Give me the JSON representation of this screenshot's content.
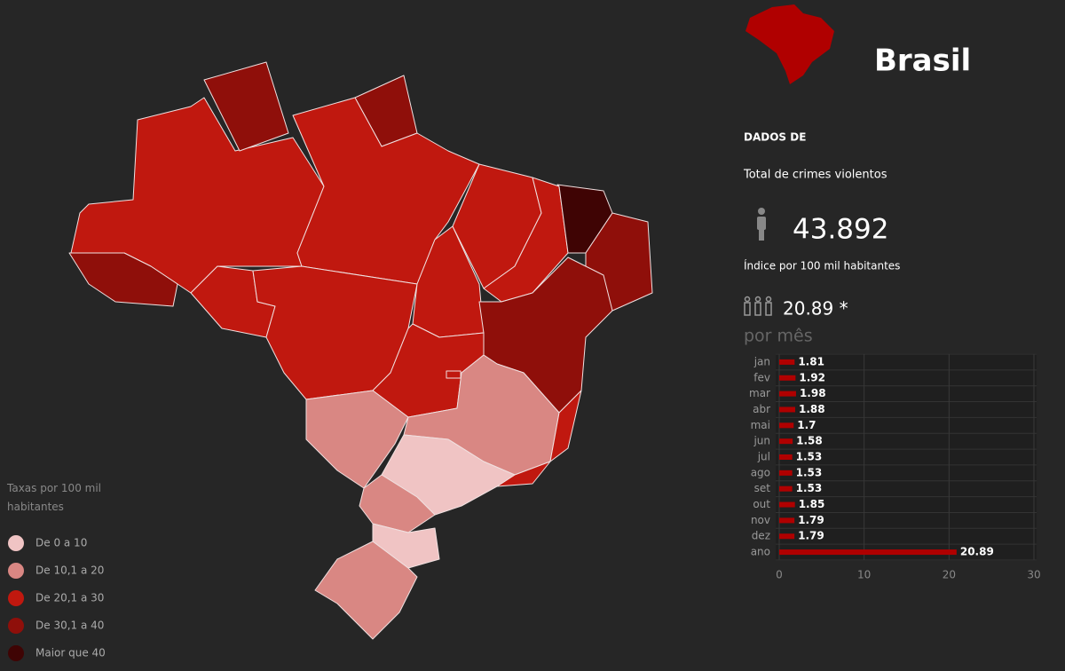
{
  "header": {
    "title": "Brasil"
  },
  "panel": {
    "section": "DADOS DE",
    "total_label": "Total de crimes violentos",
    "total_value": "43.892",
    "index_label": "Índice por 100 mil habitantes",
    "index_value": "20.89 *",
    "subtitle": "por mês"
  },
  "legend": {
    "title": "Taxas por 100 mil habitantes",
    "items": [
      {
        "label": "De 0 a 10",
        "color": "#f0c4c4"
      },
      {
        "label": "De 10,1 a 20",
        "color": "#d98783"
      },
      {
        "label": "De 20,1 a 30",
        "color": "#c0180f"
      },
      {
        "label": "De 30,1 a 40",
        "color": "#8f0f0a"
      },
      {
        "label": "Maior que 40",
        "color": "#3f0404"
      }
    ]
  },
  "chart_data": {
    "type": "bar",
    "orientation": "horizontal",
    "categories": [
      "jan",
      "fev",
      "mar",
      "abr",
      "mai",
      "jun",
      "jul",
      "ago",
      "set",
      "out",
      "nov",
      "dez",
      "ano"
    ],
    "values": [
      1.81,
      1.92,
      1.98,
      1.88,
      1.7,
      1.58,
      1.53,
      1.53,
      1.53,
      1.85,
      1.79,
      1.79,
      20.89
    ],
    "color": "#b00000",
    "xlim": [
      0,
      30
    ],
    "xticks": [
      0,
      10,
      20,
      30
    ],
    "grid": true
  }
}
